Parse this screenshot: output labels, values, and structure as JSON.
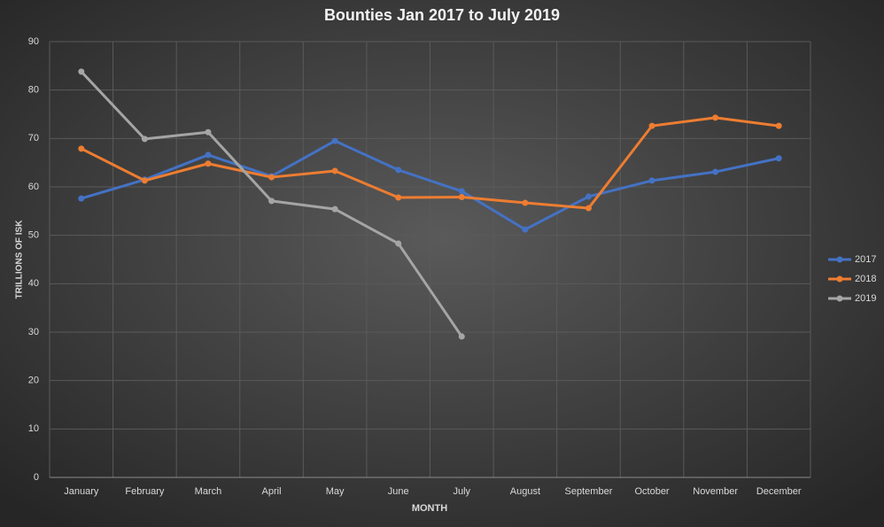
{
  "chart_data": {
    "type": "line",
    "title": "Bounties Jan 2017 to July 2019",
    "x_label": "MONTH",
    "y_label": "TRILLIONS OF ISK",
    "categories": [
      "January",
      "February",
      "March",
      "April",
      "May",
      "June",
      "July",
      "August",
      "September",
      "October",
      "November",
      "December"
    ],
    "series": [
      {
        "name": "2017",
        "color": "#4472c4",
        "values": [
          57.6,
          61.5,
          66.6,
          62.2,
          69.5,
          63.5,
          59.1,
          51.2,
          58,
          61.3,
          63.1,
          65.9
        ]
      },
      {
        "name": "2018",
        "color": "#ed7d31",
        "values": [
          67.9,
          61.3,
          64.8,
          62,
          63.3,
          57.8,
          57.9,
          56.7,
          55.6,
          72.6,
          74.3,
          72.6
        ]
      },
      {
        "name": "2019",
        "color": "#a5a5a5",
        "values": [
          83.8,
          69.9,
          71.3,
          57.1,
          55.4,
          48.3,
          29.1,
          null,
          null,
          null,
          null,
          null
        ]
      }
    ],
    "ylim": [
      0,
      90
    ],
    "yticks": [
      0,
      10,
      20,
      30,
      40,
      50,
      60,
      70,
      80,
      90
    ],
    "grid": true,
    "legend": "right"
  }
}
